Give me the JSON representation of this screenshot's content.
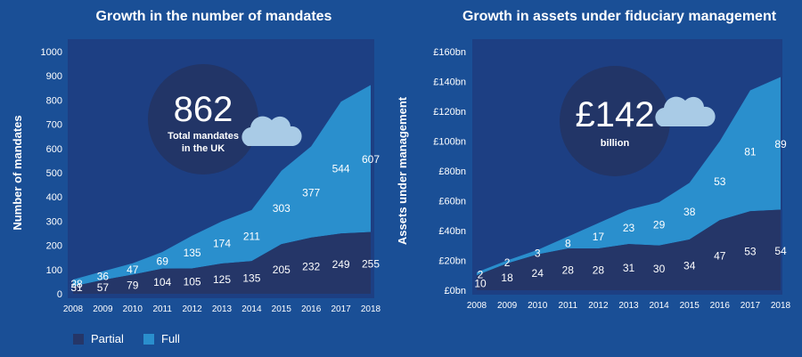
{
  "colors": {
    "background": "#1a4f96",
    "panel": "#1d3f83",
    "partial": "#253668",
    "full": "#2a8fcd",
    "circle": "#223567",
    "cloud": "#a9cbe6"
  },
  "legend": {
    "partial": "Partial",
    "full": "Full"
  },
  "charts": {
    "mandates": {
      "title": "Growth in the number of mandates",
      "ylabel": "Number of mandates",
      "badge_value": "862",
      "badge_text1": "Total mandates",
      "badge_text2": "in the UK"
    },
    "assets": {
      "title": "Growth in assets under fiduciary management",
      "ylabel": "Assets under management",
      "badge_value": "£142",
      "badge_text1": "billion"
    }
  },
  "chart_data": [
    {
      "type": "area",
      "title": "Growth in the number of mandates",
      "xlabel": "",
      "ylabel": "Number of mandates",
      "x": [
        2008,
        2009,
        2010,
        2011,
        2012,
        2013,
        2014,
        2015,
        2016,
        2017,
        2018
      ],
      "ylim": [
        0,
        1000
      ],
      "yticks": [
        0,
        100,
        200,
        300,
        400,
        500,
        600,
        700,
        800,
        900,
        1000
      ],
      "ytick_labels": [
        "0",
        "100",
        "200",
        "300",
        "400",
        "500",
        "600",
        "700",
        "800",
        "900",
        "1000"
      ],
      "stacked": true,
      "series": [
        {
          "name": "Partial",
          "values": [
            31,
            57,
            79,
            104,
            105,
            125,
            135,
            205,
            232,
            249,
            255
          ]
        },
        {
          "name": "Full",
          "values": [
            28,
            36,
            47,
            69,
            135,
            174,
            211,
            303,
            377,
            544,
            607
          ]
        }
      ],
      "legend": "bottom-left",
      "grid": false
    },
    {
      "type": "area",
      "title": "Growth in assets under fiduciary management",
      "xlabel": "",
      "ylabel": "Assets under management",
      "x": [
        2008,
        2009,
        2010,
        2011,
        2012,
        2013,
        2014,
        2015,
        2016,
        2017,
        2018
      ],
      "ylim": [
        0,
        160
      ],
      "yticks": [
        0,
        20,
        40,
        60,
        80,
        100,
        120,
        140,
        160
      ],
      "ytick_labels": [
        "£0bn",
        "£20bn",
        "£40bn",
        "£60bn",
        "£80bn",
        "£100bn",
        "£120bn",
        "£140bn",
        "£160bn"
      ],
      "stacked": true,
      "series": [
        {
          "name": "Partial",
          "values": [
            10,
            18,
            24,
            28,
            28,
            31,
            30,
            34,
            47,
            53,
            54
          ]
        },
        {
          "name": "Full",
          "values": [
            2,
            2,
            3,
            8,
            17,
            23,
            29,
            38,
            53,
            81,
            89
          ]
        }
      ],
      "legend": "bottom-left",
      "grid": false
    }
  ]
}
